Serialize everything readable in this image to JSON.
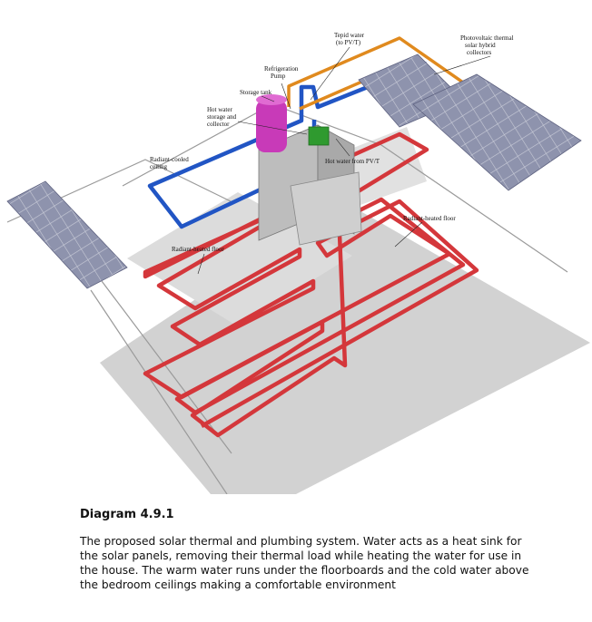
{
  "diagram": {
    "labels": {
      "tepid_water": [
        "Tepid water",
        "(to PV/T)"
      ],
      "pvt_collectors": [
        "Photovoltaic thermal",
        "solar hybrid",
        "collectors"
      ],
      "refrigeration_pump": [
        "Refrigeration",
        "Pump"
      ],
      "storage_tank": "Storage tank",
      "hot_water_storage": [
        "Hot water",
        "storage and",
        "collector"
      ],
      "radiant_cooled_ceiling": [
        "Radiant-cooled",
        "ceiling"
      ],
      "hot_water_from_pvt": "Hot water from PV/T",
      "radiant_heated_floor_right": "Radiant-heated floor",
      "radiant_heated_floor_left": "Radiant-heated floor"
    },
    "colors": {
      "hot_pipe": "#d4373b",
      "cold_pipe": "#2155c4",
      "tepid_pipe": "#e08a1e",
      "solar_panel": "#8e93ad",
      "storage_tank": "#c83ab8",
      "pump": "#2f9a2f",
      "floor_slab": "#d2d2d2"
    }
  },
  "caption": {
    "title": "Diagram 4.9.1",
    "text": "The proposed solar thermal and plumbing system. Water acts as a heat sink for the solar panels, removing their thermal load while heating the water for use in the house. The warm water runs under the floorboards and the cold water above the bedroom ceilings making a comfortable environment"
  }
}
